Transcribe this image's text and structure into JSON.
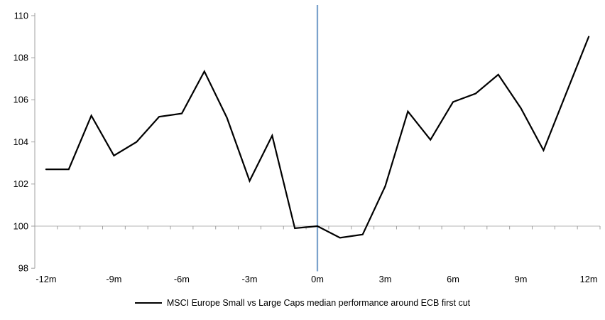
{
  "figure": {
    "background": "#FFFFFF"
  },
  "legend": {
    "marker": "line-sample",
    "label": "MSCI Europe Small vs Large Caps median performance around ECB first cut"
  },
  "chart_data": {
    "type": "line",
    "title": "",
    "xlabel": "",
    "ylabel": "",
    "x_months": [
      -12,
      -11,
      -10,
      -9,
      -8,
      -7,
      -6,
      -5,
      -4,
      -3,
      -2,
      -1,
      0,
      1,
      2,
      3,
      4,
      5,
      6,
      7,
      8,
      9,
      10,
      11,
      12
    ],
    "series": [
      {
        "name": "MSCI Europe Small vs Large Caps median performance around ECB first cut",
        "color": "#000000",
        "line_width": 2.2,
        "values": [
          102.7,
          102.7,
          105.25,
          103.35,
          104.0,
          105.2,
          105.35,
          107.35,
          105.15,
          102.15,
          104.3,
          99.9,
          100.0,
          99.45,
          99.6,
          101.9,
          105.45,
          104.1,
          105.9,
          106.3,
          107.2,
          105.6,
          103.6,
          106.3,
          109.0
        ]
      }
    ],
    "x_tick_labels": [
      "-12m",
      "-9m",
      "-6m",
      "-3m",
      "0m",
      "3m",
      "6m",
      "9m",
      "12m"
    ],
    "x_tick_months": [
      -12,
      -9,
      -6,
      -3,
      0,
      3,
      6,
      9,
      12
    ],
    "y_ticks": [
      110,
      108,
      106,
      104,
      102,
      100,
      98
    ],
    "ylim": [
      98,
      110
    ],
    "baseline_value": 100,
    "event_line": {
      "x_month": 0,
      "color": "#7BA2CC"
    },
    "grid": "none",
    "legend_position": "bottom",
    "axis_color": "#A0A0A0",
    "baseline_color": "#B5B5B5",
    "text_color": "#000000"
  }
}
